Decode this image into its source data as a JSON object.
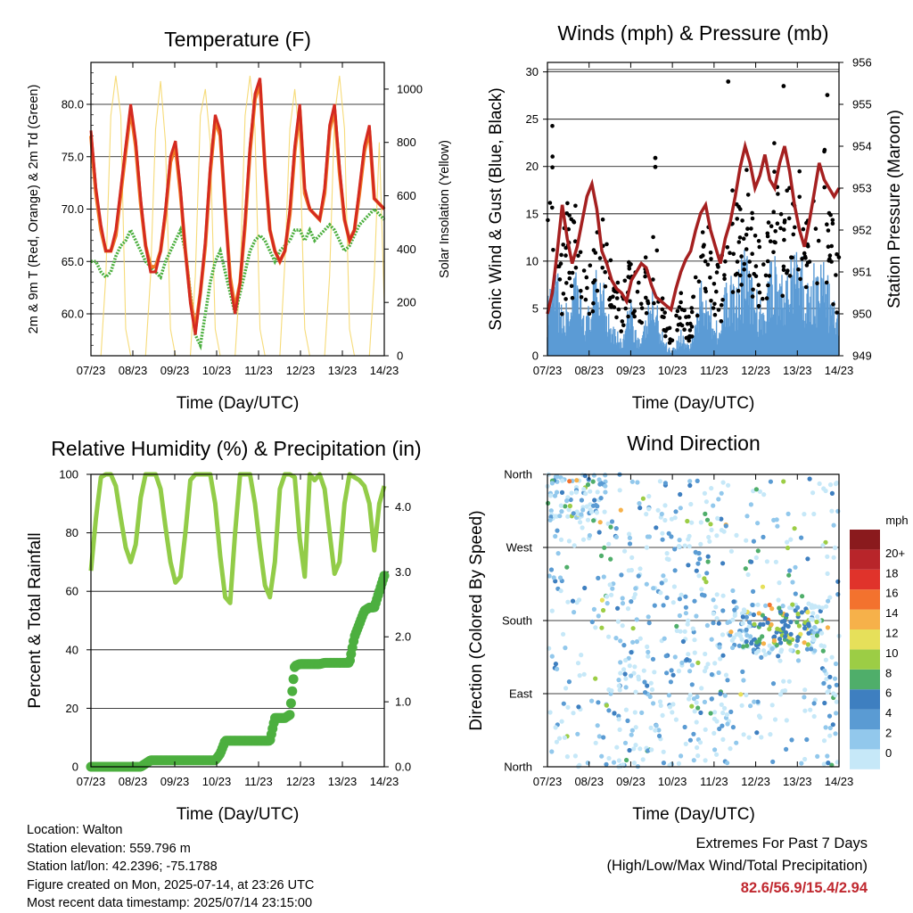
{
  "colors": {
    "temp2m": "#d42a20",
    "temp9m": "#f07a26",
    "dewpoint": "#4caf3f",
    "solar": "#f5d76a",
    "wind": "#5b9bd5",
    "gust": "#000000",
    "pressure": "#a52020",
    "rh": "#92cc48",
    "precip": "#4caf3f",
    "extremes": "#c0282f"
  },
  "chart_data": [
    {
      "type": "line",
      "title": "Temperature (F)",
      "xlabel": "Time (Day/UTC)",
      "ylabel": "2m & 9m T (Red, Orange) & 2m Td (Green)",
      "y2label": "Solar Insolation (Yellow)",
      "xticks": [
        "07/23",
        "08/23",
        "09/23",
        "10/23",
        "11/23",
        "12/23",
        "13/23",
        "14/23"
      ],
      "yticks": [
        "60.0",
        "65.0",
        "70.0",
        "75.0",
        "80.0"
      ],
      "y2ticks": [
        "0",
        "200",
        "400",
        "600",
        "800",
        "1000"
      ],
      "ylim": [
        56,
        84
      ],
      "y2lim": [
        0,
        1100
      ],
      "series": [
        {
          "name": "2m T",
          "values": [
            77.5,
            72,
            68.5,
            66,
            66,
            68,
            72,
            76,
            80,
            76.5,
            71,
            66.5,
            64,
            64,
            66,
            70,
            75,
            76.5,
            72,
            66,
            61,
            58,
            62,
            67,
            74,
            79,
            77.5,
            70,
            63,
            60,
            63,
            69,
            76,
            81,
            82.5,
            74,
            68,
            66,
            65,
            66,
            70,
            76,
            80,
            72,
            70,
            69.5,
            69,
            72,
            78,
            80,
            74,
            69,
            67,
            68,
            72,
            76,
            78,
            71,
            70.5,
            70
          ]
        },
        {
          "name": "9m T",
          "values": [
            77,
            71.5,
            68,
            66,
            66,
            67.5,
            71.5,
            75.5,
            79.5,
            76,
            70.5,
            66.5,
            64.5,
            64.5,
            66,
            69.5,
            74.5,
            76,
            71.5,
            66,
            61.5,
            58.5,
            62,
            66.5,
            73.5,
            78.5,
            77,
            70,
            63.5,
            60.5,
            63,
            68.5,
            75.5,
            80.5,
            82,
            74,
            68,
            66,
            65,
            66,
            69.5,
            75.5,
            79.5,
            71.5,
            70,
            69.5,
            69,
            71.5,
            77.5,
            79.5,
            73.5,
            69,
            67,
            68,
            71.5,
            75.5,
            77.5,
            71,
            70.5,
            70
          ]
        },
        {
          "name": "2m Td",
          "values": [
            65,
            65,
            64,
            63.5,
            64,
            65.5,
            66.5,
            67,
            68,
            67,
            66,
            65,
            64.5,
            64,
            63.5,
            65,
            66,
            67,
            68,
            66,
            62,
            58,
            57,
            60,
            63,
            65,
            66,
            64,
            62,
            60,
            62,
            64,
            66,
            67,
            67.5,
            67,
            66,
            65,
            66,
            66.5,
            67,
            68,
            68,
            67,
            68,
            67,
            67.5,
            68,
            68.5,
            68,
            67,
            66,
            66.5,
            67.5,
            68.5,
            69,
            69.5,
            70,
            69.5,
            69
          ]
        },
        {
          "name": "Solar Insolation",
          "values": [
            0,
            0,
            0,
            300,
            900,
            1050,
            900,
            100,
            0,
            0,
            0,
            0,
            300,
            850,
            1030,
            800,
            100,
            0,
            0,
            0,
            0,
            300,
            900,
            1000,
            800,
            100,
            0,
            0,
            0,
            0,
            300,
            900,
            1050,
            850,
            100,
            0,
            0,
            0,
            0,
            350,
            850,
            1000,
            800,
            100,
            0,
            0,
            0,
            0,
            300,
            900,
            1050,
            850,
            100,
            0,
            0,
            0,
            0,
            300,
            800,
            200
          ]
        }
      ]
    },
    {
      "type": "line",
      "title": "Winds (mph) & Pressure (mb)",
      "xlabel": "Time (Day/UTC)",
      "ylabel": "Sonic Wind & Gust (Blue, Black)",
      "y2label": "Station Pressure (Maroon)",
      "xticks": [
        "07/23",
        "08/23",
        "09/23",
        "10/23",
        "11/23",
        "12/23",
        "13/23",
        "14/23"
      ],
      "yticks": [
        "0",
        "5",
        "10",
        "15",
        "20",
        "25",
        "30"
      ],
      "y2ticks": [
        "949",
        "950",
        "951",
        "952",
        "953",
        "954",
        "955",
        "956"
      ],
      "ylim": [
        0,
        31
      ],
      "y2lim": [
        949,
        956
      ],
      "series": [
        {
          "name": "Sonic Wind",
          "values": [
            4,
            5,
            6,
            3,
            4,
            5,
            6,
            4,
            3,
            5,
            6,
            7,
            4,
            3,
            2,
            1,
            3,
            4,
            2,
            1,
            3,
            5,
            4,
            2,
            1,
            0.5,
            1,
            2,
            1,
            1,
            3,
            5,
            6,
            4,
            3,
            2,
            5,
            6,
            5,
            7,
            8,
            6,
            5,
            4,
            3,
            7,
            8,
            6,
            5,
            9,
            7,
            8,
            6,
            5,
            7,
            6,
            8,
            5,
            4,
            3
          ]
        },
        {
          "name": "Gust",
          "values": [
            10,
            20,
            9,
            8,
            12,
            11,
            13,
            9,
            7,
            8,
            10,
            12,
            9,
            7,
            6,
            4,
            7,
            8,
            6,
            5,
            8,
            10,
            9,
            6,
            3,
            2,
            3,
            5,
            3,
            3,
            7,
            10,
            13,
            9,
            8,
            6,
            12,
            14,
            11,
            13,
            15,
            12,
            10,
            9,
            8,
            12,
            17,
            13,
            11,
            16,
            14,
            15,
            12,
            10,
            13,
            12,
            16,
            11,
            10,
            8
          ]
        },
        {
          "name": "Station Pressure",
          "values": [
            950,
            950.5,
            951.5,
            952.6,
            951.8,
            951.2,
            951.6,
            952.2,
            952.8,
            953.1,
            952.5,
            951.5,
            951.2,
            950.8,
            950.6,
            950.5,
            950.3,
            950.8,
            951,
            951.2,
            951.1,
            950.7,
            950.4,
            950.3,
            950.2,
            950.1,
            950.6,
            951,
            951.3,
            951.5,
            952,
            952.4,
            952.6,
            952,
            951.6,
            951.2,
            951.8,
            952.2,
            952.8,
            953.5,
            954,
            953.6,
            953,
            953.3,
            953.8,
            953.2,
            953,
            953.6,
            954,
            953.4,
            952.6,
            952,
            951.6,
            952.2,
            952.9,
            953.6,
            953.2,
            953,
            952.8,
            953
          ]
        }
      ]
    },
    {
      "type": "line",
      "title": "Relative Humidity (%) & Precipitation (in)",
      "xlabel": "Time (Day/UTC)",
      "ylabel": "Percent & Total Rainfall",
      "xticks": [
        "07/23",
        "08/23",
        "09/23",
        "10/23",
        "11/23",
        "12/23",
        "13/23",
        "14/23"
      ],
      "yticks": [
        "0",
        "20",
        "40",
        "60",
        "80",
        "100"
      ],
      "y2ticks": [
        "0.0",
        "1.0",
        "2.0",
        "3.0",
        "4.0"
      ],
      "ylim": [
        0,
        100
      ],
      "y2lim": [
        0,
        4.5
      ],
      "series": [
        {
          "name": "Relative Humidity",
          "values": [
            67,
            85,
            99,
            100,
            100,
            96,
            85,
            75,
            70,
            76,
            92,
            100,
            100,
            100,
            95,
            82,
            70,
            63,
            65,
            80,
            98,
            100,
            100,
            100,
            100,
            90,
            72,
            58,
            56,
            80,
            100,
            100,
            100,
            90,
            75,
            62,
            58,
            70,
            95,
            100,
            100,
            99,
            78,
            65,
            100,
            98,
            100,
            95,
            80,
            66,
            70,
            90,
            100,
            99,
            98,
            96,
            90,
            74,
            90,
            96
          ]
        },
        {
          "name": "Total Precipitation",
          "values": [
            0,
            0,
            0,
            0,
            0,
            0,
            0,
            0,
            0,
            0,
            0,
            0.05,
            0.1,
            0.1,
            0.1,
            0.1,
            0.1,
            0.1,
            0.1,
            0.1,
            0.1,
            0.1,
            0.1,
            0.1,
            0.1,
            0.1,
            0.2,
            0.4,
            0.4,
            0.4,
            0.4,
            0.4,
            0.4,
            0.4,
            0.4,
            0.4,
            0.4,
            0.75,
            0.75,
            0.75,
            0.8,
            1.55,
            1.58,
            1.58,
            1.58,
            1.58,
            1.58,
            1.6,
            1.6,
            1.6,
            1.6,
            1.6,
            1.6,
            2.0,
            2.2,
            2.4,
            2.45,
            2.45,
            2.7,
            2.94
          ]
        }
      ]
    },
    {
      "type": "scatter",
      "title": "Wind Direction",
      "xlabel": "Time (Day/UTC)",
      "ylabel": "Direction (Colored By Speed)",
      "xticks": [
        "07/23",
        "08/23",
        "09/23",
        "10/23",
        "11/23",
        "12/23",
        "13/23",
        "14/23"
      ],
      "yticks": [
        "North",
        "East",
        "South",
        "West",
        "North"
      ],
      "ylim": [
        0,
        360
      ],
      "colorbar": {
        "title": "mph",
        "labels": [
          "0",
          "2",
          "4",
          "6",
          "8",
          "10",
          "12",
          "14",
          "16",
          "18",
          "20+"
        ],
        "colors": [
          "#c6e8f8",
          "#92c8ec",
          "#5a9bd3",
          "#3e7fc0",
          "#4fae6a",
          "#9ccd45",
          "#e6e05a",
          "#f6b14a",
          "#f3722e",
          "#e0332b",
          "#b8252a",
          "#8a1a1d"
        ]
      }
    }
  ],
  "info": {
    "location": "Location: Walton",
    "elevation": "Station elevation: 559.796 m",
    "latlon": "Station lat/lon: 42.2396; -75.1788",
    "created": "Figure created on Mon, 2025-07-14, at 23:26 UTC",
    "recent": "Most recent data timestamp: 2025/07/14 23:15:00"
  },
  "extremes": {
    "line1": "Extremes For Past 7 Days",
    "line2": "(High/Low/Max Wind/Total Precipitation)",
    "values": "82.6/56.9/15.4/2.94"
  }
}
